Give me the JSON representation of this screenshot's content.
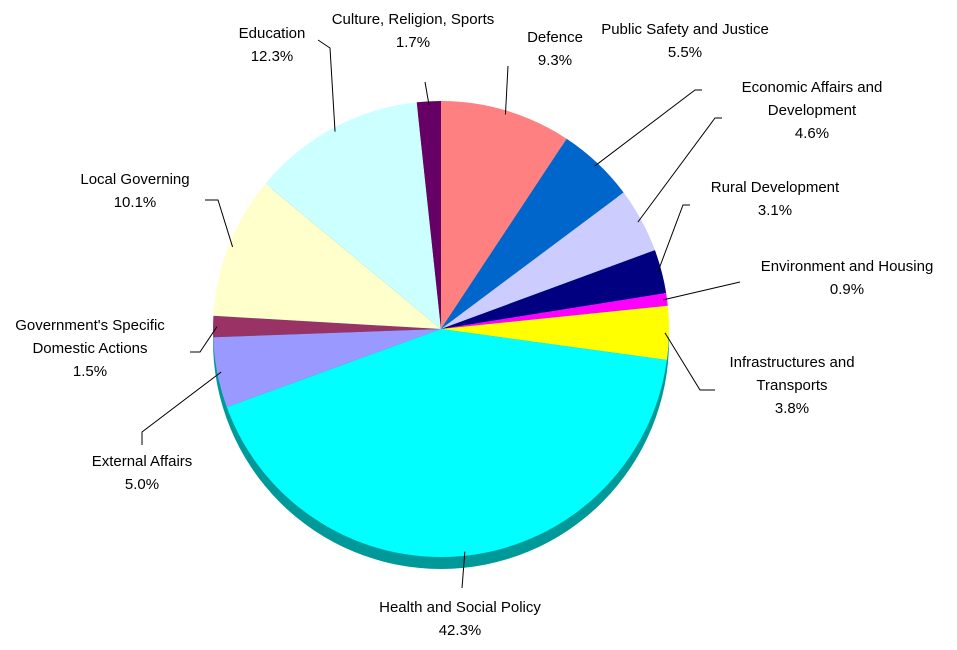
{
  "chart_data": {
    "type": "pie",
    "categories": [
      "Defence",
      "Public Safety and Justice",
      "Economic Affairs and Development",
      "Rural Development",
      "Environment and Housing",
      "Infrastructures and Transports",
      "Health and Social Policy",
      "External Affairs",
      "Government's Specific Domestic Actions",
      "Local Governing",
      "Education",
      "Culture, Religion, Sports"
    ],
    "values": [
      9.3,
      5.5,
      4.6,
      3.1,
      0.9,
      3.8,
      42.3,
      5.0,
      1.5,
      10.1,
      12.3,
      1.7
    ],
    "value_labels": [
      "9.3%",
      "5.5%",
      "4.6%",
      "3.1%",
      "0.9%",
      "3.8%",
      "42.3%",
      "5.0%",
      "1.5%",
      "10.1%",
      "12.3%",
      "1.7%"
    ],
    "colors": [
      "#ff8080",
      "#0066cc",
      "#ccccff",
      "#000080",
      "#ff00ff",
      "#ffff00",
      "#00ffff",
      "#9999ff",
      "#993366",
      "#ffffcc",
      "#ccffff",
      "#660066"
    ]
  }
}
